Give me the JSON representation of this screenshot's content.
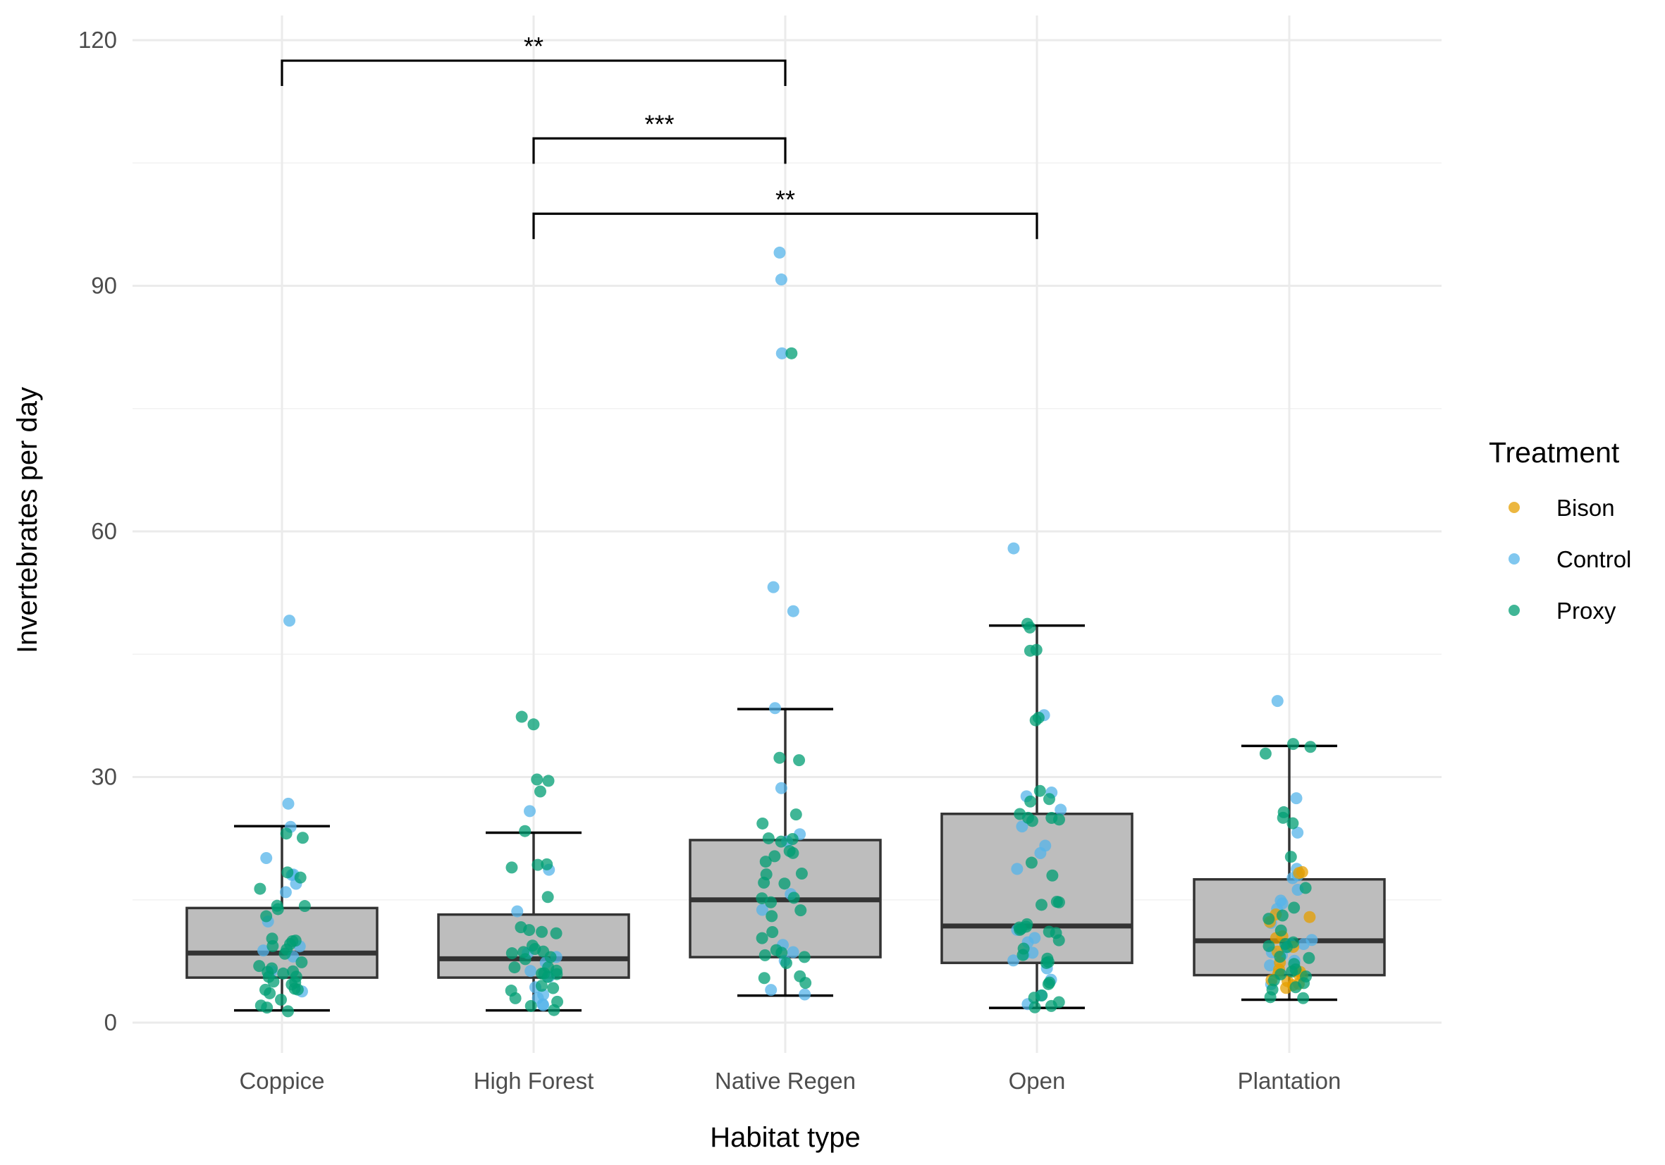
{
  "chart_data": {
    "type": "box",
    "title": "",
    "xlabel": "Habitat type",
    "ylabel": "Invertebrates per day",
    "ylim": [
      -3.5,
      120
    ],
    "y_ticks": [
      0,
      30,
      60,
      90,
      120
    ],
    "y_tick_labels": [
      "0",
      "30",
      "60",
      "90",
      "120"
    ],
    "categories": [
      "Coppice",
      "High Forest",
      "Native Regen",
      "Open",
      "Plantation"
    ],
    "grid": true,
    "legend_position": "right",
    "legend": {
      "title": "Treatment",
      "entries": [
        {
          "name": "Bison",
          "color": "#E69F00"
        },
        {
          "name": "Control",
          "color": "#56B4E9"
        },
        {
          "name": "Proxy",
          "color": "#009E73"
        }
      ]
    },
    "colors": {
      "box_fill": "#bdbdbd",
      "box_line": "#333333",
      "grid": "#ebebeb"
    },
    "boxes": [
      {
        "category": "Coppice",
        "whisker_low": 1.5,
        "q1": 5.5,
        "median": 8.5,
        "q3": 14,
        "whisker_high": 24
      },
      {
        "category": "High Forest",
        "whisker_low": 1.5,
        "q1": 5.5,
        "median": 7.8,
        "q3": 13.2,
        "whisker_high": 23.2
      },
      {
        "category": "Native Regen",
        "whisker_low": 3.3,
        "q1": 8,
        "median": 15,
        "q3": 22.3,
        "whisker_high": 38.3
      },
      {
        "category": "Open",
        "whisker_low": 1.8,
        "q1": 7.3,
        "median": 11.8,
        "q3": 25.5,
        "whisker_high": 48.5
      },
      {
        "category": "Plantation",
        "whisker_low": 2.8,
        "q1": 5.8,
        "median": 10,
        "q3": 17.5,
        "whisker_high": 33.8
      }
    ],
    "points": [
      {
        "category": "Coppice",
        "treatment": "Control",
        "values": [
          49,
          27,
          24,
          20.3,
          18.2,
          18,
          16.8,
          15.8,
          12.5,
          9.5,
          8.8,
          8,
          6.2,
          4
        ]
      },
      {
        "category": "Coppice",
        "treatment": "Proxy",
        "values": [
          23,
          22.8,
          18.3,
          17.6,
          16.3,
          14.5,
          14,
          13.8,
          13.2,
          10.5,
          10.2,
          10,
          9.8,
          9.5,
          9,
          8.2,
          7.5,
          7,
          6.8,
          6.5,
          6.2,
          6,
          5.8,
          5.5,
          5.2,
          5,
          4.5,
          4.2,
          4,
          3.8,
          3.5,
          2.8,
          2,
          1.6,
          1.6
        ]
      },
      {
        "category": "High Forest",
        "treatment": "Control",
        "values": [
          25.8,
          18.5,
          13.5,
          8.5,
          8,
          7.2,
          6.5,
          5.5,
          4.5,
          3.2,
          2.8,
          2.2,
          2
        ]
      },
      {
        "category": "High Forest",
        "treatment": "Proxy",
        "values": [
          37.5,
          36.5,
          29.5,
          29.5,
          28.3,
          23.2,
          19.3,
          19.3,
          19.2,
          15.5,
          11.5,
          11.3,
          11.3,
          11,
          9.5,
          9,
          8.8,
          8.5,
          8.3,
          8,
          7.5,
          7,
          6.8,
          6.5,
          6.2,
          6,
          5.8,
          5.5,
          4.5,
          4.2,
          4,
          2.8,
          2.5,
          1.8,
          1.5
        ]
      },
      {
        "category": "Native Regen",
        "treatment": "Control",
        "values": [
          94,
          91,
          81.5,
          53,
          50,
          38.3,
          28.5,
          23,
          22.3,
          15.8,
          13.8,
          9.5,
          8.5,
          7.8,
          4,
          3.5
        ]
      },
      {
        "category": "Native Regen",
        "treatment": "Proxy",
        "values": [
          82,
          32.2,
          32.2,
          25.2,
          24.5,
          22.3,
          22.3,
          22.3,
          21,
          20.5,
          20.2,
          19.5,
          18,
          18,
          17.2,
          17.2,
          15.2,
          15,
          14.8,
          13.8,
          13,
          11.2,
          10.2,
          8.8,
          8.5,
          8,
          7.8,
          7.5,
          5.5,
          5.3,
          5
        ]
      },
      {
        "category": "Open",
        "treatment": "Control",
        "values": [
          58,
          37.5,
          28.2,
          27.8,
          26,
          24,
          21.8,
          20.8,
          19,
          11.2,
          10.5,
          10,
          8.5,
          8.5,
          7.5,
          6.8,
          5.5,
          3.5,
          2
        ]
      },
      {
        "category": "Open",
        "treatment": "Proxy",
        "values": [
          48.5,
          48.5,
          45.5,
          45.5,
          37,
          37,
          28.5,
          27.5,
          27,
          25.5,
          25,
          25,
          24.8,
          24.8,
          19.5,
          18,
          15,
          14.5,
          14.5,
          12,
          11.8,
          11.5,
          11.5,
          11.2,
          11,
          10.8,
          10,
          9,
          8.2,
          7.8,
          7.5,
          7.5,
          4.8,
          4.5,
          3.2,
          2.8,
          2.5,
          2.2,
          2
        ]
      },
      {
        "category": "Plantation",
        "treatment": "Bison",
        "values": [
          18.5,
          18.2,
          13.2,
          12.8,
          12.5,
          10.8,
          10.2,
          9.5,
          8.8,
          7.5,
          6.5,
          6.2,
          6,
          5.8,
          5.5,
          5.2,
          5,
          4.8,
          4.5,
          4.2
        ]
      },
      {
        "category": "Plantation",
        "treatment": "Control",
        "values": [
          39.3,
          27.5,
          23.2,
          19,
          17.8,
          17.5,
          16.2,
          15,
          14.5,
          13.8,
          12.2,
          10.2,
          9.8,
          9.5,
          9.2,
          8.8,
          8,
          7.5,
          6.8,
          4.5
        ]
      },
      {
        "category": "Plantation",
        "treatment": "Proxy",
        "values": [
          33.8,
          33.5,
          32.8,
          25.5,
          25,
          24.5,
          20,
          16.2,
          13.8,
          13,
          12.5,
          11.5,
          10,
          9.8,
          9.5,
          9.2,
          8.2,
          7.8,
          7,
          6.5,
          6,
          5.8,
          5.5,
          5.2,
          5,
          4.5,
          4.2,
          3.2,
          2.8
        ]
      }
    ],
    "significance": [
      {
        "from": "Coppice",
        "to": "Native Regen",
        "label": "**",
        "y": 117.5
      },
      {
        "from": "High Forest",
        "to": "Native Regen",
        "label": "***",
        "y": 108
      },
      {
        "from": "High Forest",
        "to": "Open",
        "label": "**",
        "y": 98.8
      }
    ]
  }
}
